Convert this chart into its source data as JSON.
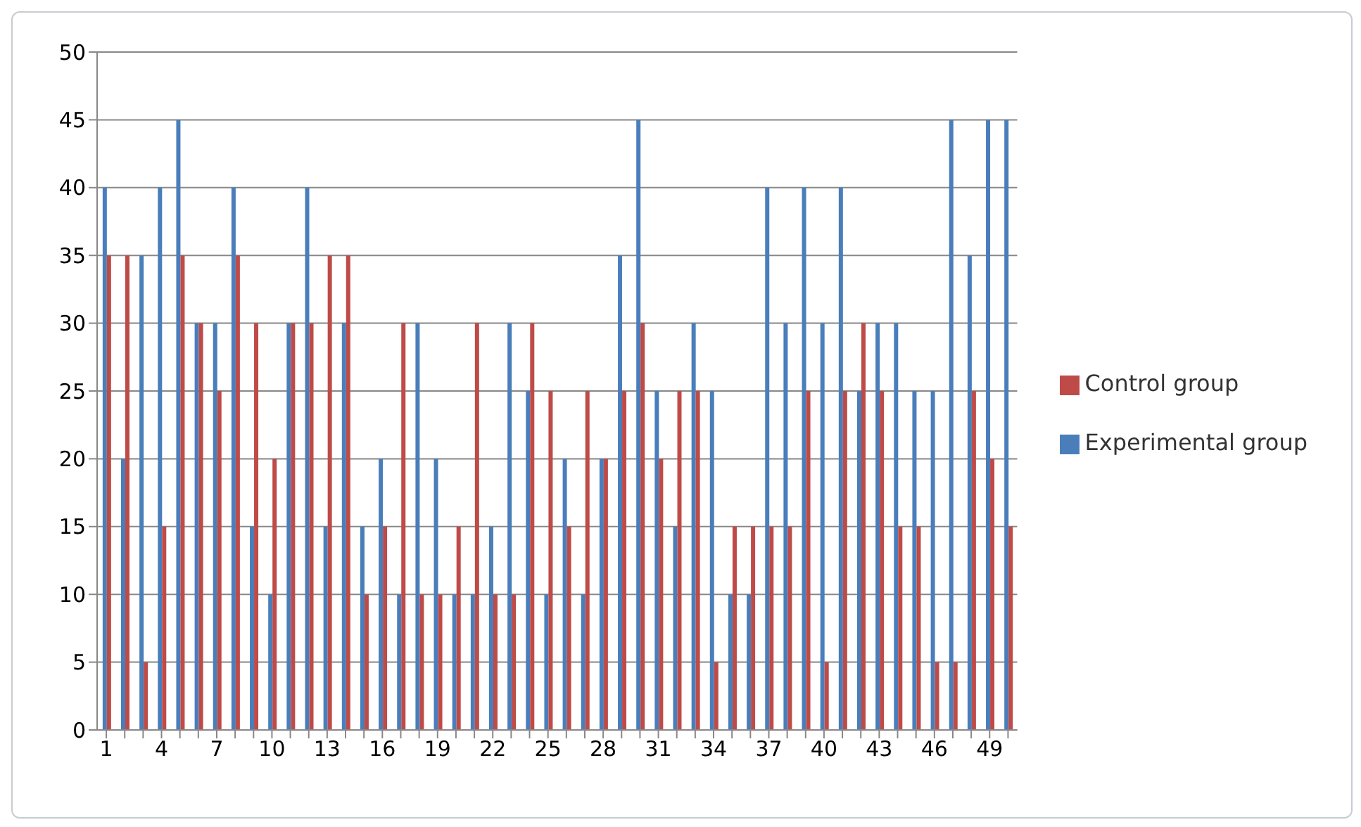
{
  "chart_data": {
    "type": "bar",
    "categories": [
      "1",
      null,
      null,
      "4",
      null,
      null,
      "7",
      null,
      null,
      "10",
      null,
      null,
      "13",
      null,
      null,
      "16",
      null,
      null,
      "19",
      null,
      null,
      "22",
      null,
      null,
      "25",
      null,
      null,
      "28",
      null,
      null,
      "31",
      null,
      null,
      "34",
      null,
      null,
      "37",
      null,
      null,
      "40",
      null,
      null,
      "43",
      null,
      null,
      "46",
      null,
      null,
      "49",
      null
    ],
    "series": [
      {
        "name": "Experimental group",
        "color": "#4a7ebb",
        "values": [
          40,
          20,
          35,
          40,
          45,
          30,
          30,
          40,
          15,
          10,
          30,
          40,
          15,
          30,
          15,
          20,
          10,
          30,
          20,
          10,
          10,
          15,
          30,
          25,
          10,
          20,
          10,
          20,
          35,
          45,
          25,
          15,
          30,
          25,
          10,
          10,
          40,
          30,
          40,
          30,
          40,
          25,
          30,
          30,
          25,
          25,
          45,
          35,
          45,
          45
        ]
      },
      {
        "name": "Control group",
        "color": "#be4b48",
        "values": [
          35,
          35,
          5,
          15,
          35,
          30,
          25,
          35,
          30,
          20,
          30,
          30,
          35,
          35,
          10,
          15,
          30,
          10,
          10,
          15,
          30,
          10,
          10,
          30,
          25,
          15,
          25,
          20,
          25,
          30,
          20,
          25,
          25,
          5,
          15,
          15,
          15,
          15,
          25,
          5,
          25,
          30,
          25,
          15,
          15,
          5,
          5,
          25,
          20,
          15
        ]
      }
    ],
    "ylim": [
      0,
      50
    ],
    "yticks": [
      0,
      5,
      10,
      15,
      20,
      25,
      30,
      35,
      40,
      45,
      50
    ],
    "grid": "y",
    "legend": "right"
  }
}
